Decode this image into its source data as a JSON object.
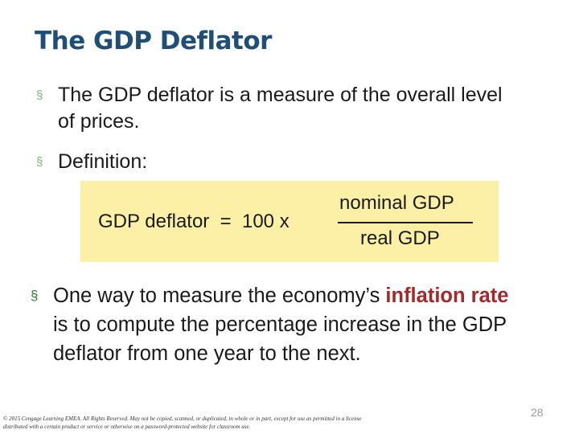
{
  "slide": {
    "title": "The GDP Deflator",
    "bullets": [
      {
        "text": "The GDP deflator is a measure of the overall level of prices."
      },
      {
        "text": "Definition:"
      },
      {
        "text_before": "One way to measure the economy’s ",
        "highlight": "inflation rate",
        "text_after": " is to compute the percentage increase in the GDP deflator from one year to the next."
      }
    ],
    "bullet_marker": "§",
    "formula": {
      "lhs": "GDP deflator  =  100 x",
      "numerator": "nominal GDP",
      "denominator": "real GDP"
    },
    "footer": "© 2015 Cengage Learning EMEA. All Rights Reserved. May not be copied, scanned, or duplicated, in whole or in part, except for use as permitted in a license distributed with a certain product or service or otherwise on a password-protected website for classroom use.",
    "page_number": "28",
    "colors": {
      "title": "#1f4e79",
      "bullet_marker": "#7fb56e",
      "highlight": "#a32a2a",
      "formula_background": "#fcf0a6"
    }
  }
}
